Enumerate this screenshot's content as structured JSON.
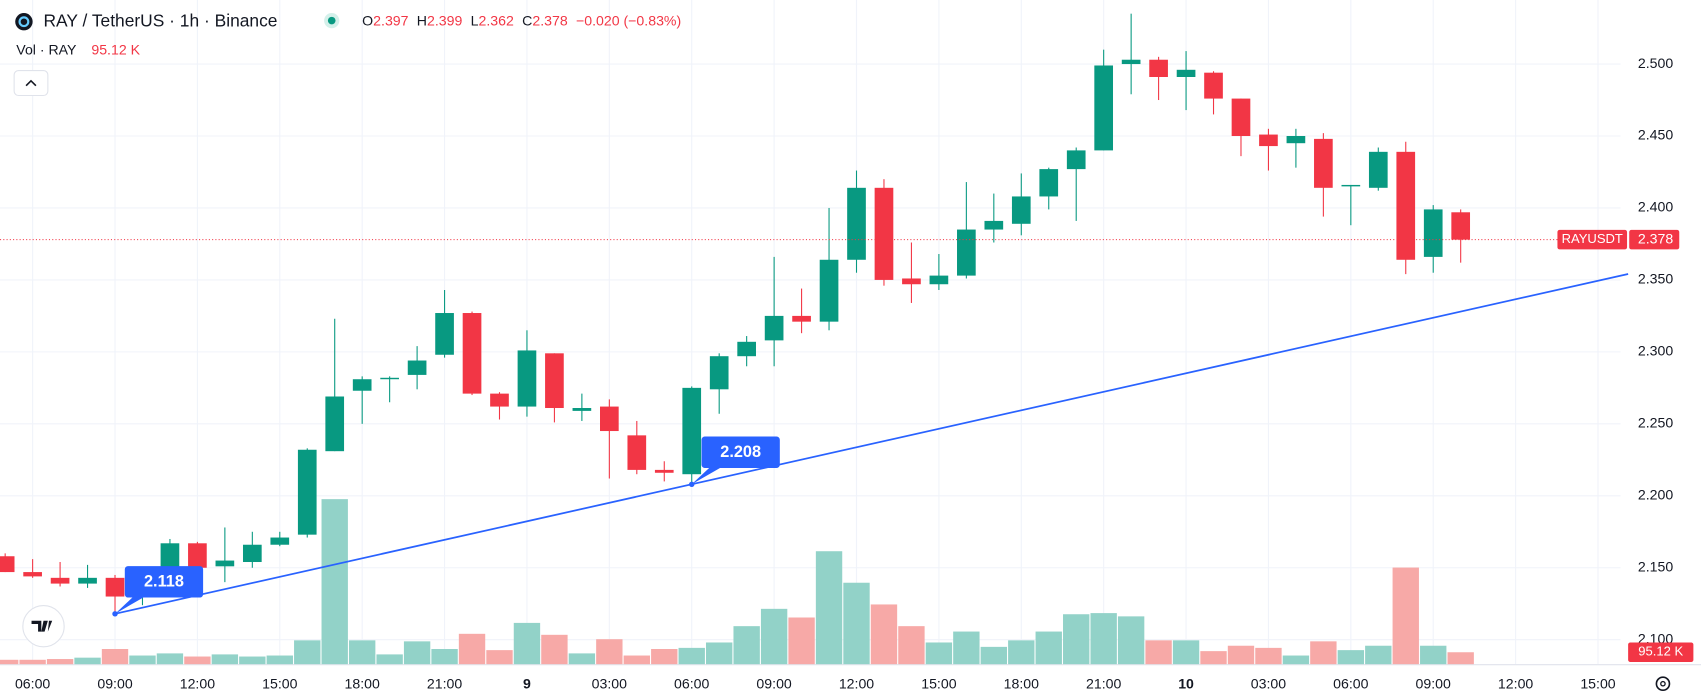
{
  "header": {
    "symbol": "RAY / TetherUS · 1h · Binance",
    "o_label": "O",
    "o_value": 2.397,
    "h_label": "H",
    "h_value": 2.399,
    "l_label": "L",
    "l_value": 2.362,
    "c_label": "C",
    "c_value": 2.378,
    "change": "−0.020 (−0.83%)",
    "volume_title": "Vol · RAY",
    "price_tag": "RAYUSDT"
  },
  "chart_data": {
    "type": "candlestick",
    "x": [
      0,
      1,
      2,
      3,
      4,
      5,
      6,
      7,
      8,
      9,
      10,
      11,
      12,
      13,
      14,
      15,
      16,
      17,
      18,
      19,
      20,
      21,
      22,
      23,
      24,
      25,
      26,
      27,
      28,
      29,
      30,
      31,
      32,
      33,
      34,
      35,
      36,
      37,
      38,
      39,
      40,
      41,
      42,
      43,
      44,
      45,
      46,
      47,
      48,
      49,
      50,
      51,
      52,
      53
    ],
    "open": [
      2.158,
      2.147,
      2.143,
      2.139,
      2.143,
      2.13,
      2.137,
      2.167,
      2.151,
      2.154,
      2.166,
      2.173,
      2.231,
      2.273,
      2.281,
      2.284,
      2.298,
      2.327,
      2.271,
      2.262,
      2.299,
      2.259,
      2.262,
      2.242,
      2.218,
      2.215,
      2.274,
      2.297,
      2.308,
      2.325,
      2.321,
      2.364,
      2.414,
      2.351,
      2.347,
      2.353,
      2.385,
      2.389,
      2.408,
      2.427,
      2.44,
      2.5,
      2.503,
      2.491,
      2.494,
      2.476,
      2.451,
      2.445,
      2.448,
      2.415,
      2.414,
      2.439,
      2.366,
      2.397
    ],
    "high": [
      2.16,
      2.156,
      2.154,
      2.152,
      2.145,
      2.14,
      2.17,
      2.168,
      2.178,
      2.175,
      2.175,
      2.233,
      2.323,
      2.283,
      2.283,
      2.304,
      2.343,
      2.328,
      2.272,
      2.315,
      2.299,
      2.271,
      2.267,
      2.252,
      2.224,
      2.276,
      2.299,
      2.311,
      2.366,
      2.344,
      2.4,
      2.426,
      2.42,
      2.376,
      2.368,
      2.418,
      2.41,
      2.424,
      2.428,
      2.442,
      2.51,
      2.535,
      2.505,
      2.509,
      2.495,
      2.476,
      2.455,
      2.455,
      2.452,
      2.416,
      2.442,
      2.446,
      2.402,
      2.399
    ],
    "low": [
      2.147,
      2.143,
      2.137,
      2.136,
      2.118,
      2.124,
      2.135,
      2.148,
      2.14,
      2.15,
      2.165,
      2.171,
      2.231,
      2.25,
      2.265,
      2.274,
      2.296,
      2.27,
      2.253,
      2.255,
      2.251,
      2.252,
      2.212,
      2.215,
      2.21,
      2.208,
      2.257,
      2.29,
      2.29,
      2.313,
      2.315,
      2.355,
      2.346,
      2.334,
      2.343,
      2.351,
      2.376,
      2.381,
      2.399,
      2.391,
      2.44,
      2.479,
      2.475,
      2.468,
      2.465,
      2.436,
      2.426,
      2.428,
      2.394,
      2.388,
      2.412,
      2.354,
      2.355,
      2.362
    ],
    "close": [
      2.147,
      2.144,
      2.139,
      2.143,
      2.13,
      2.137,
      2.167,
      2.15,
      2.155,
      2.166,
      2.171,
      2.232,
      2.269,
      2.281,
      2.282,
      2.294,
      2.327,
      2.271,
      2.262,
      2.301,
      2.261,
      2.261,
      2.245,
      2.218,
      2.216,
      2.275,
      2.297,
      2.307,
      2.325,
      2.321,
      2.364,
      2.414,
      2.35,
      2.347,
      2.353,
      2.385,
      2.391,
      2.408,
      2.427,
      2.44,
      2.499,
      2.503,
      2.491,
      2.496,
      2.476,
      2.45,
      2.443,
      2.45,
      2.414,
      2.416,
      2.439,
      2.364,
      2.399,
      2.378
    ],
    "up_color": "#089981",
    "down_color": "#f23645",
    "volume": {
      "values": [
        35,
        35,
        41,
        52,
        121,
        69,
        86,
        61,
        78,
        61,
        69,
        190,
        1315,
        190,
        78,
        182,
        121,
        242,
        112,
        329,
        234,
        86,
        199,
        69,
        121,
        130,
        173,
        303,
        441,
        372,
        900,
        649,
        476,
        303,
        173,
        260,
        138,
        190,
        260,
        398,
        407,
        381,
        190,
        190,
        104,
        147,
        130,
        69,
        182,
        112,
        147,
        770,
        147,
        95.12
      ],
      "value_labels": [
        null,
        null,
        null,
        null,
        null,
        null,
        null,
        null,
        null,
        null,
        null,
        null,
        null,
        null,
        null,
        null,
        null,
        null,
        null,
        null,
        null,
        null,
        null,
        null,
        null,
        null,
        null,
        null,
        null,
        null,
        null,
        null,
        null,
        null,
        null,
        null,
        null,
        null,
        null,
        null,
        null,
        null,
        null,
        null,
        null,
        null,
        null,
        null,
        null,
        null,
        null,
        null,
        null,
        "95.12 K"
      ],
      "lim": [
        0,
        5292
      ],
      "up_color": "#92d2c8",
      "down_color": "#f7a9a7"
    },
    "xlim": [
      -0.188,
      58.82
    ],
    "xticks": [
      {
        "value": 1,
        "label": "06:00"
      },
      {
        "value": 4,
        "label": "09:00"
      },
      {
        "value": 7,
        "label": "12:00"
      },
      {
        "value": 10,
        "label": "15:00"
      },
      {
        "value": 13,
        "label": "18:00"
      },
      {
        "value": 16,
        "label": "21:00"
      },
      {
        "value": 19,
        "label": "9"
      },
      {
        "value": 22,
        "label": "03:00"
      },
      {
        "value": 25,
        "label": "06:00"
      },
      {
        "value": 28,
        "label": "09:00"
      },
      {
        "value": 31,
        "label": "12:00"
      },
      {
        "value": 34,
        "label": "15:00"
      },
      {
        "value": 37,
        "label": "18:00"
      },
      {
        "value": 40,
        "label": "21:00"
      },
      {
        "value": 43,
        "label": "10"
      },
      {
        "value": 46,
        "label": "03:00"
      },
      {
        "value": 49,
        "label": "06:00"
      },
      {
        "value": 52,
        "label": "09:00"
      },
      {
        "value": 55,
        "label": "12:00"
      },
      {
        "value": 58,
        "label": "15:00"
      }
    ],
    "ylim": [
      2.083,
      2.5445
    ],
    "yticks": [
      {
        "value": 2.1,
        "label": "2.100"
      },
      {
        "value": 2.15,
        "label": "2.150"
      },
      {
        "value": 2.2,
        "label": "2.200"
      },
      {
        "value": 2.25,
        "label": "2.250"
      },
      {
        "value": 2.3,
        "label": "2.300"
      },
      {
        "value": 2.35,
        "label": "2.350"
      },
      {
        "value": 2.4,
        "label": "2.400"
      },
      {
        "value": 2.45,
        "label": "2.450"
      },
      {
        "value": 2.5,
        "label": "2.500"
      }
    ],
    "grid": true,
    "trendline": {
      "x": [
        4,
        25
      ],
      "y": [
        2.118,
        2.208
      ],
      "color": "#2962ff",
      "extend": "right"
    }
  }
}
